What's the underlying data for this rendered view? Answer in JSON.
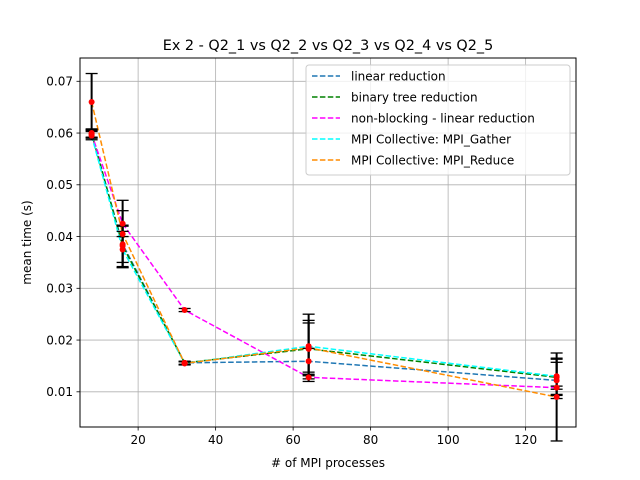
{
  "chart_data": {
    "type": "line",
    "title": "Ex 2 - Q2_1 vs Q2_2 vs Q2_3 vs Q2_4 vs Q2_5",
    "xlabel": "# of MPI processes",
    "ylabel": "mean time (s)",
    "xlim": [
      5,
      133
    ],
    "ylim": [
      0.0032,
      0.0745
    ],
    "xticks": [
      20,
      40,
      60,
      80,
      100,
      120
    ],
    "yticks": [
      0.01,
      0.02,
      0.03,
      0.04,
      0.05,
      0.06,
      0.07
    ],
    "xtick_labels": [
      "20",
      "40",
      "60",
      "80",
      "100",
      "120"
    ],
    "ytick_labels": [
      "0.01",
      "0.02",
      "0.03",
      "0.04",
      "0.05",
      "0.06",
      "0.07"
    ],
    "grid": true,
    "legend_position": "top-right",
    "line_style": "dashed",
    "marker_color": "#ff0000",
    "errorbar_color": "#000000",
    "x": [
      8,
      16,
      32,
      64,
      128
    ],
    "series": [
      {
        "name": "linear reduction",
        "color": "#1f77b4",
        "values": [
          0.0599,
          0.0385,
          0.0156,
          0.0159,
          0.0122
        ],
        "errors": [
          0.0008,
          0.0035,
          0.0003,
          0.0025,
          0.0035
        ]
      },
      {
        "name": "binary tree reduction",
        "color": "#008000",
        "values": [
          0.06,
          0.0382,
          0.0156,
          0.0183,
          0.0128
        ],
        "errors": [
          0.0008,
          0.004,
          0.0003,
          0.005,
          0.0035
        ]
      },
      {
        "name": "non-blocking - linear reduction",
        "color": "#ff00ff",
        "values": [
          0.0598,
          0.0425,
          0.0258,
          0.0128,
          0.0108
        ],
        "errors": [
          0.0008,
          0.0025,
          0.0003,
          0.0003,
          0.0003
        ]
      },
      {
        "name": "MPI Collective: MPI_Gather",
        "color": "#00ffff",
        "values": [
          0.0595,
          0.0375,
          0.0155,
          0.0188,
          0.013
        ],
        "errors": [
          0.0008,
          0.0035,
          0.0003,
          0.005,
          0.0035
        ]
      },
      {
        "name": "MPI Collective: MPI_Reduce",
        "color": "#ff8c00",
        "values": [
          0.066,
          0.0405,
          0.0155,
          0.0185,
          0.009
        ],
        "errors": [
          0.0055,
          0.0065,
          0.0003,
          0.0065,
          0.0085
        ]
      }
    ]
  }
}
